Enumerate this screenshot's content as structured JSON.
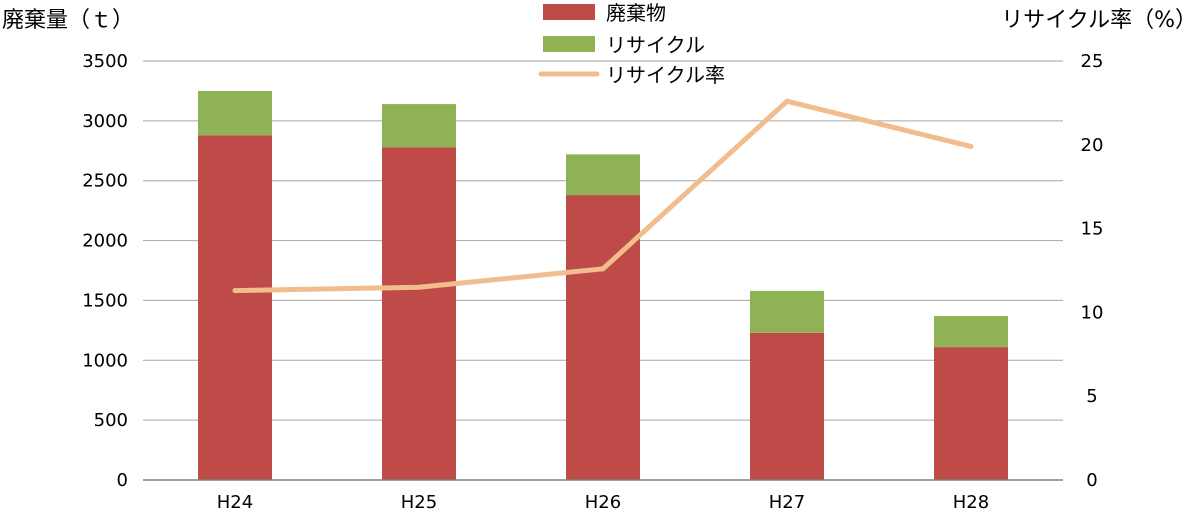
{
  "chart_data": {
    "type": "bar",
    "stacked": true,
    "categories": [
      "H24",
      "H25",
      "H26",
      "H27",
      "H28"
    ],
    "series": [
      {
        "name": "廃棄物",
        "type": "bar",
        "axis": "left",
        "color": "#be4b48",
        "values": [
          2880,
          2780,
          2380,
          1230,
          1110
        ]
      },
      {
        "name": "リサイクル",
        "type": "bar",
        "axis": "left",
        "color": "#8fb254",
        "values": [
          370,
          360,
          340,
          350,
          260
        ]
      },
      {
        "name": "リサイクル率",
        "type": "line",
        "axis": "right",
        "color": "#f1bd8f",
        "values": [
          11.3,
          11.5,
          12.6,
          22.6,
          19.9
        ]
      }
    ],
    "ylabel": "廃棄量（ｔ）",
    "y2label": "リサイクル率（%）",
    "ylim": [
      0,
      3500
    ],
    "yticks": [
      0,
      500,
      1000,
      1500,
      2000,
      2500,
      3000,
      3500
    ],
    "y2lim": [
      0,
      25
    ],
    "y2ticks": [
      0,
      5,
      10,
      15,
      20,
      25
    ],
    "grid": true,
    "legend_position": "top-center"
  }
}
